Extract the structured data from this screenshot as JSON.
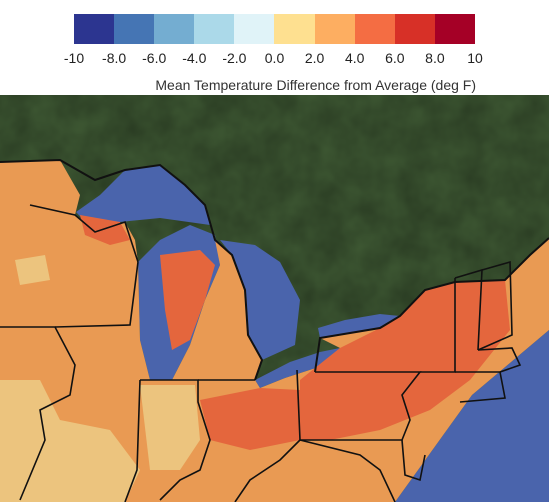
{
  "legend": {
    "title": "Mean Temperature Difference from Average (deg F)",
    "colors": [
      "#2c3590",
      "#4575b4",
      "#74add1",
      "#abd9e9",
      "#e0f3f8",
      "#fee090",
      "#fdae61",
      "#f46d43",
      "#d73027",
      "#a50026"
    ],
    "ticks": [
      "-10",
      "-8.0",
      "-6.0",
      "-4.0",
      "-2.0",
      "0.0",
      "2.0",
      "4.0",
      "6.0",
      "8.0",
      "10"
    ]
  },
  "map": {
    "land_color": "#3f5a34",
    "water_color": "#4a64ac",
    "warm_color": "#e99a53",
    "mild_color": "#ecc47e",
    "hot_color": "#e4663d",
    "border_color": "#111111"
  }
}
